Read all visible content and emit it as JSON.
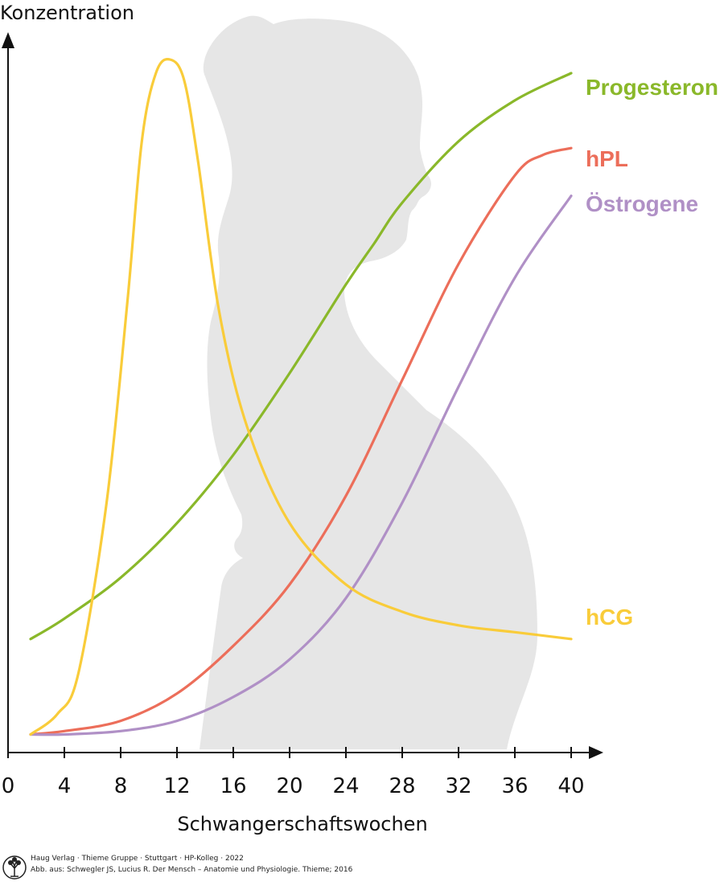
{
  "chart_data": {
    "type": "line",
    "ylabel": "Konzentration",
    "xlabel": "Schwangerschaftswochen",
    "xlim": [
      0,
      41
    ],
    "ylim": [
      0,
      100
    ],
    "x_ticks": [
      0,
      4,
      8,
      12,
      16,
      20,
      24,
      28,
      32,
      36,
      40
    ],
    "y_ticks": [],
    "grid": false,
    "legend": "labels at right end of each curve",
    "series": [
      {
        "name": "Progesteron",
        "color": "#8ab82a",
        "x": [
          1.6,
          4,
          8,
          12,
          16,
          20,
          24,
          26,
          28,
          32,
          36,
          40
        ],
        "y": [
          15,
          18,
          24,
          32,
          42,
          54,
          67,
          73,
          79,
          88,
          94,
          98
        ]
      },
      {
        "name": "hPL",
        "color": "#ec6e5a",
        "x": [
          1.6,
          4,
          8,
          12,
          16,
          20,
          24,
          28,
          32,
          36,
          38,
          40
        ],
        "y": [
          1,
          1.5,
          3,
          7,
          14,
          23,
          36,
          53,
          70,
          83,
          86,
          87
        ]
      },
      {
        "name": "Östrogene",
        "color": "#b090c6",
        "x": [
          1.6,
          4,
          8,
          12,
          16,
          20,
          24,
          28,
          32,
          36,
          40
        ],
        "y": [
          1,
          1,
          1.5,
          3,
          6.5,
          12,
          21,
          35,
          52,
          68,
          80
        ]
      },
      {
        "name": "hCG",
        "color": "#f9cc3a",
        "x": [
          1.6,
          3.5,
          5,
          7,
          8.5,
          9.5,
          10.5,
          11.5,
          12.5,
          13.5,
          15,
          17,
          20,
          24,
          28,
          32,
          36,
          40
        ],
        "y": [
          1,
          4,
          10,
          35,
          65,
          88,
          98,
          100,
          97,
          85,
          63,
          46,
          32,
          23,
          19,
          17,
          16,
          15
        ]
      }
    ]
  },
  "credit": {
    "line1": "Haug Verlag · Thieme Gruppe · Stuttgart · HP-Kolleg · 2022",
    "line2": "Abb. aus: Schwegler JS, Lucius R. Der Mensch – Anatomie und Physiologie. Thieme; 2016"
  },
  "colors": {
    "axis": "#111111",
    "silhouette": "#e6e6e6"
  },
  "icons": {
    "publisher_logo": "tree-logo-icon"
  }
}
